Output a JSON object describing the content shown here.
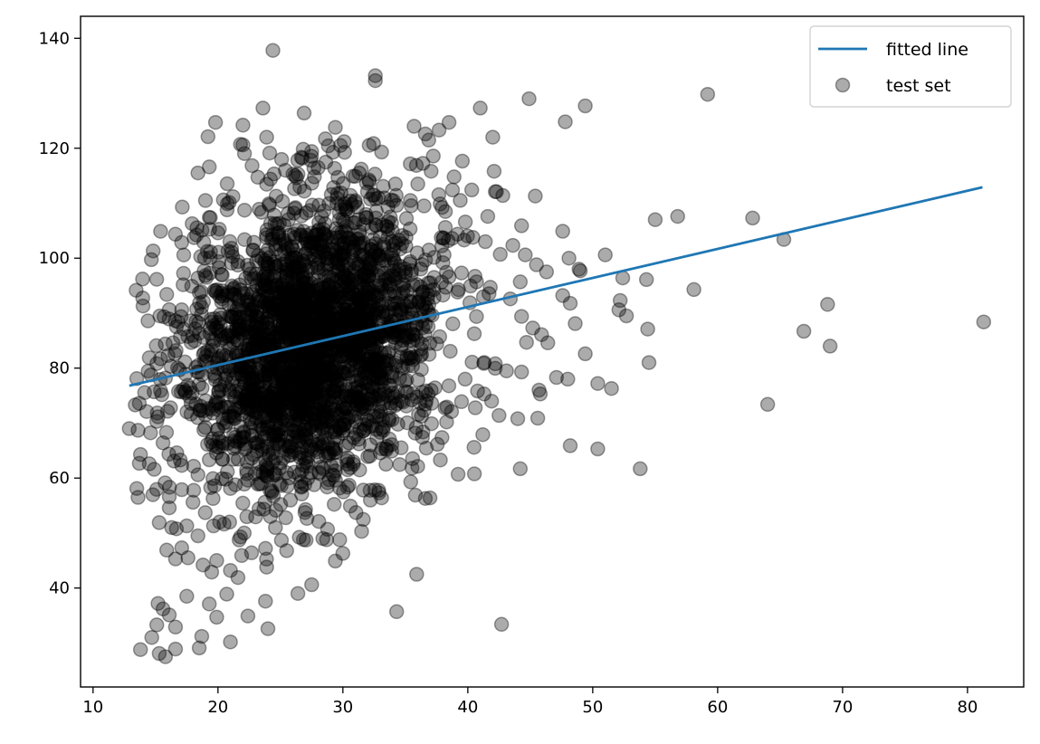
{
  "chart_data": {
    "type": "scatter",
    "xlim": [
      9,
      84.5
    ],
    "ylim": [
      22,
      144
    ],
    "xticks": [
      10,
      20,
      30,
      40,
      50,
      60,
      70,
      80
    ],
    "yticks": [
      40,
      60,
      80,
      100,
      120,
      140
    ],
    "grid": false,
    "legend_position": "top-right",
    "series": [
      {
        "name": "fitted line",
        "kind": "line",
        "color": "#1f77b4",
        "x": [
          12.9,
          81.2
        ],
        "y": [
          76.8,
          112.9
        ]
      },
      {
        "name": "test set",
        "kind": "scatter",
        "color": "#000000",
        "opacity": 0.33,
        "dense_cluster": {
          "x_center": 27.5,
          "x_spread": 5.0,
          "y_center": 85,
          "y_spread": 13,
          "count": 2600
        },
        "points": [
          [
            24.4,
            137.8
          ],
          [
            32.6,
            133.2
          ],
          [
            32.6,
            132.3
          ],
          [
            23.6,
            127.3
          ],
          [
            26.9,
            126.4
          ],
          [
            41.0,
            127.3
          ],
          [
            44.9,
            129.0
          ],
          [
            49.4,
            127.7
          ],
          [
            59.2,
            129.8
          ],
          [
            19.8,
            124.7
          ],
          [
            22.0,
            124.2
          ],
          [
            29.4,
            123.8
          ],
          [
            35.7,
            124.0
          ],
          [
            36.6,
            122.6
          ],
          [
            37.7,
            123.3
          ],
          [
            38.5,
            124.7
          ],
          [
            42.0,
            122.0
          ],
          [
            47.8,
            124.8
          ],
          [
            19.2,
            122.1
          ],
          [
            23.9,
            122.0
          ],
          [
            21.8,
            120.7
          ],
          [
            22.0,
            120.6
          ],
          [
            27.5,
            119.4
          ],
          [
            33.1,
            119.3
          ],
          [
            29.8,
            120.5
          ],
          [
            28.6,
            121.7
          ],
          [
            30.1,
            121.2
          ],
          [
            19.3,
            116.6
          ],
          [
            18.4,
            115.5
          ],
          [
            25.4,
            116.0
          ],
          [
            31.3,
            115.5
          ],
          [
            30.8,
            114.9
          ],
          [
            34.2,
            113.5
          ],
          [
            36.0,
            113.5
          ],
          [
            38.9,
            114.8
          ],
          [
            42.8,
            111.4
          ],
          [
            45.4,
            111.3
          ],
          [
            42.3,
            112.1
          ],
          [
            42.2,
            112.1
          ],
          [
            41.6,
            107.6
          ],
          [
            44.3,
            105.9
          ],
          [
            47.6,
            104.9
          ],
          [
            55.0,
            107.0
          ],
          [
            56.8,
            107.6
          ],
          [
            62.8,
            107.3
          ],
          [
            65.3,
            103.4
          ],
          [
            51.0,
            100.6
          ],
          [
            48.1,
            100.0
          ],
          [
            49.0,
            97.7
          ],
          [
            48.9,
            98.0
          ],
          [
            52.4,
            96.4
          ],
          [
            54.3,
            96.1
          ],
          [
            58.1,
            94.3
          ],
          [
            47.6,
            93.2
          ],
          [
            52.2,
            92.3
          ],
          [
            52.7,
            89.5
          ],
          [
            52.1,
            90.6
          ],
          [
            48.2,
            91.8
          ],
          [
            48.6,
            88.1
          ],
          [
            54.4,
            87.1
          ],
          [
            66.9,
            86.7
          ],
          [
            68.8,
            91.6
          ],
          [
            69.0,
            84.0
          ],
          [
            81.3,
            88.4
          ],
          [
            64.0,
            73.4
          ],
          [
            54.5,
            81.0
          ],
          [
            49.4,
            82.6
          ],
          [
            50.4,
            77.2
          ],
          [
            51.5,
            76.3
          ],
          [
            48.0,
            78.0
          ],
          [
            47.1,
            78.3
          ],
          [
            45.7,
            76.0
          ],
          [
            45.8,
            75.3
          ],
          [
            45.6,
            70.9
          ],
          [
            44.0,
            70.8
          ],
          [
            42.5,
            71.4
          ],
          [
            41.2,
            67.9
          ],
          [
            40.5,
            65.6
          ],
          [
            37.8,
            63.3
          ],
          [
            36.6,
            56.3
          ],
          [
            35.8,
            56.9
          ],
          [
            35.9,
            42.5
          ],
          [
            34.3,
            35.7
          ],
          [
            42.7,
            33.4
          ],
          [
            44.2,
            61.7
          ],
          [
            48.2,
            65.9
          ],
          [
            50.4,
            65.3
          ],
          [
            53.8,
            61.7
          ],
          [
            33.1,
            56.4
          ],
          [
            32.2,
            56.0
          ],
          [
            31.5,
            50.3
          ],
          [
            30.0,
            46.3
          ],
          [
            29.4,
            44.9
          ],
          [
            27.5,
            40.6
          ],
          [
            26.4,
            39.0
          ],
          [
            28.4,
            49.0
          ],
          [
            25.5,
            46.8
          ],
          [
            24.6,
            51.0
          ],
          [
            24.2,
            53.0
          ],
          [
            23.8,
            47.2
          ],
          [
            23.9,
            43.8
          ],
          [
            23.8,
            37.6
          ],
          [
            24.0,
            32.6
          ],
          [
            22.4,
            34.9
          ],
          [
            22.1,
            50.0
          ],
          [
            21.8,
            49.3
          ],
          [
            21.9,
            45.9
          ],
          [
            21.6,
            41.9
          ],
          [
            21.0,
            43.2
          ],
          [
            20.7,
            38.9
          ],
          [
            21.0,
            30.2
          ],
          [
            19.9,
            34.7
          ],
          [
            19.3,
            37.1
          ],
          [
            18.7,
            31.2
          ],
          [
            18.5,
            29.1
          ],
          [
            18.8,
            44.2
          ],
          [
            19.5,
            42.9
          ],
          [
            19.9,
            45.0
          ],
          [
            18.4,
            49.5
          ],
          [
            17.6,
            45.5
          ],
          [
            17.5,
            38.5
          ],
          [
            16.6,
            28.9
          ],
          [
            15.8,
            27.5
          ],
          [
            15.3,
            28.1
          ],
          [
            13.8,
            28.8
          ],
          [
            14.7,
            31.0
          ],
          [
            15.1,
            33.3
          ],
          [
            15.2,
            37.2
          ],
          [
            15.6,
            36.2
          ],
          [
            16.1,
            35.1
          ],
          [
            16.6,
            32.9
          ],
          [
            15.9,
            46.9
          ],
          [
            16.6,
            45.3
          ],
          [
            17.1,
            47.3
          ],
          [
            17.5,
            51.3
          ],
          [
            15.3,
            51.9
          ],
          [
            16.3,
            51.0
          ],
          [
            18.0,
            55.6
          ],
          [
            17.1,
            57.9
          ],
          [
            16.1,
            56.6
          ],
          [
            13.6,
            56.5
          ],
          [
            13.5,
            58.1
          ],
          [
            13.8,
            64.3
          ],
          [
            14.5,
            62.6
          ],
          [
            14.9,
            61.6
          ],
          [
            12.9,
            69.0
          ],
          [
            13.6,
            68.7
          ],
          [
            13.7,
            73.6
          ],
          [
            13.5,
            78.1
          ],
          [
            14.3,
            72.1
          ],
          [
            14.5,
            81.9
          ],
          [
            14.0,
            91.3
          ],
          [
            15.9,
            93.4
          ],
          [
            16.0,
            82.3
          ],
          [
            16.4,
            84.6
          ],
          [
            17.0,
            85.7
          ],
          [
            17.8,
            88.6
          ],
          [
            18.4,
            96.4
          ],
          [
            18.9,
            97.7
          ],
          [
            19.0,
            110.5
          ],
          [
            19.3,
            107.4
          ],
          [
            20.0,
            104.6
          ],
          [
            21.2,
            111.2
          ],
          [
            20.8,
            101.3
          ],
          [
            22.8,
            101.4
          ],
          [
            24.0,
            101.5
          ],
          [
            26.0,
            99.1
          ],
          [
            27.0,
            103.7
          ],
          [
            28.5,
            108.6
          ],
          [
            30.6,
            110.4
          ],
          [
            32.5,
            111.5
          ],
          [
            34.3,
            109.6
          ],
          [
            35.4,
            110.5
          ],
          [
            36.5,
            109.5
          ],
          [
            38.2,
            105.6
          ],
          [
            39.8,
            106.6
          ],
          [
            40.4,
            103.8
          ],
          [
            41.4,
            103.0
          ],
          [
            42.6,
            100.7
          ],
          [
            44.6,
            100.6
          ],
          [
            45.5,
            98.8
          ],
          [
            46.3,
            97.5
          ],
          [
            44.2,
            95.7
          ],
          [
            41.8,
            94.7
          ],
          [
            40.7,
            95.7
          ],
          [
            43.4,
            92.6
          ],
          [
            44.3,
            89.4
          ],
          [
            45.2,
            87.3
          ],
          [
            45.9,
            86.1
          ],
          [
            44.7,
            84.7
          ],
          [
            46.4,
            84.6
          ],
          [
            44.3,
            79.3
          ],
          [
            43.1,
            79.5
          ],
          [
            42.2,
            80.8
          ],
          [
            41.9,
            74.0
          ],
          [
            41.3,
            75.3
          ],
          [
            40.6,
            72.8
          ],
          [
            39.5,
            73.9
          ],
          [
            38.7,
            72.1
          ],
          [
            38.3,
            70.2
          ],
          [
            37.1,
            69.9
          ],
          [
            36.4,
            68.4
          ],
          [
            36.5,
            72.3
          ],
          [
            35.5,
            74.2
          ],
          [
            34.4,
            69.8
          ],
          [
            33.9,
            64.9
          ],
          [
            33.0,
            64.6
          ],
          [
            32.0,
            63.9
          ],
          [
            30.6,
            61.9
          ],
          [
            29.4,
            61.3
          ],
          [
            28.9,
            59.7
          ],
          [
            27.7,
            58.8
          ],
          [
            26.7,
            57.1
          ],
          [
            25.8,
            56.0
          ],
          [
            24.3,
            57.4
          ],
          [
            23.2,
            58.9
          ],
          [
            22.4,
            59.6
          ],
          [
            21.0,
            58.1
          ],
          [
            19.6,
            59.9
          ],
          [
            18.4,
            60.6
          ],
          [
            17.1,
            62.3
          ],
          [
            16.7,
            64.6
          ],
          [
            15.6,
            66.4
          ],
          [
            15.1,
            70.3
          ],
          [
            16.2,
            72.8
          ],
          [
            15.4,
            75.9
          ],
          [
            15.8,
            78.2
          ],
          [
            15.4,
            81.7
          ],
          [
            17.1,
            90.6
          ],
          [
            17.9,
            94.9
          ],
          [
            38.1,
            100.6
          ],
          [
            39.5,
            97.3
          ],
          [
            37.3,
            96.5
          ],
          [
            36.2,
            94.8
          ]
        ]
      }
    ]
  }
}
